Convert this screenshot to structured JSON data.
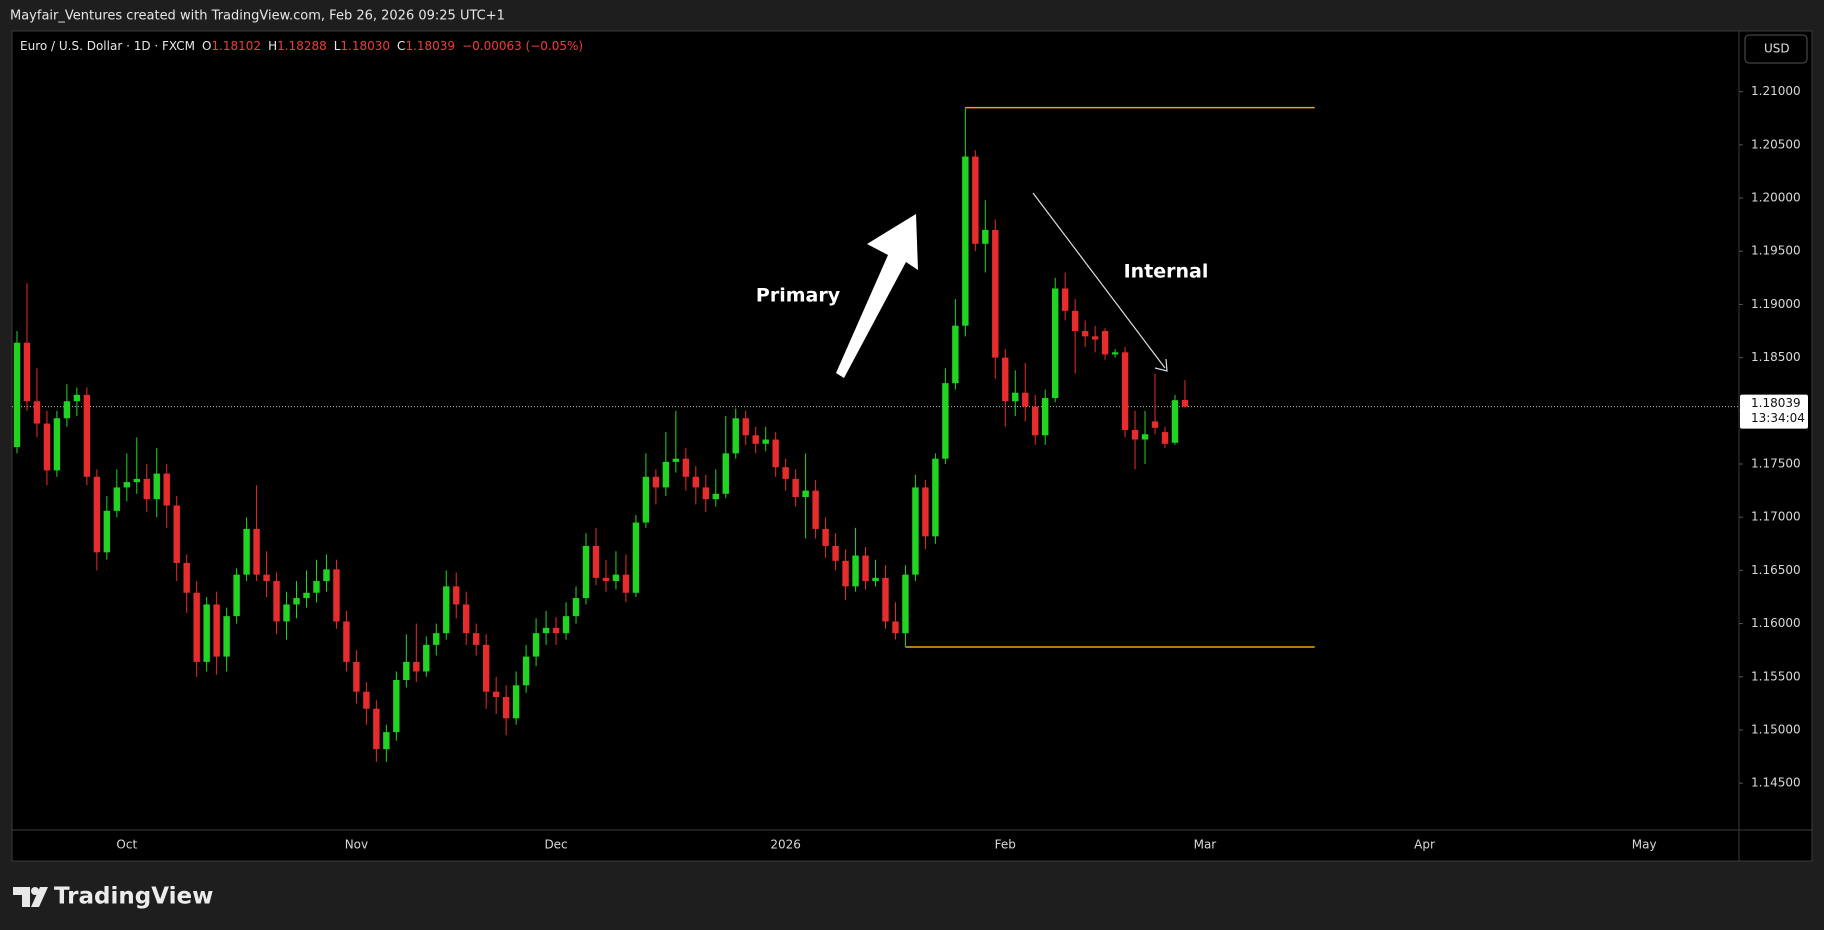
{
  "header": "Mayfair_Ventures created with TradingView.com, Feb 26, 2026 09:25 UTC+1",
  "footer": {
    "brand": "TradingView"
  },
  "chart_data": {
    "type": "candlestick",
    "legend": {
      "symbol": "Euro / U.S. Dollar · 1D · FXCM",
      "entries": [
        {
          "key": "O",
          "label": "1.18102"
        },
        {
          "key": "H",
          "label": "1.18288"
        },
        {
          "key": "L",
          "label": "1.18030"
        },
        {
          "key": "C",
          "label": "1.18039"
        }
      ],
      "change": "−0.00063 (−0.05%)"
    },
    "currency": "USD",
    "up_color": "#22d422",
    "down_color": "#e62c2c",
    "categories": [
      null,
      null,
      null,
      null,
      null,
      null,
      null,
      null,
      null,
      null,
      null,
      "Oct",
      null,
      null,
      null,
      null,
      null,
      null,
      null,
      null,
      null,
      null,
      null,
      null,
      null,
      null,
      null,
      null,
      null,
      null,
      null,
      null,
      null,
      null,
      "Nov",
      null,
      null,
      null,
      null,
      null,
      null,
      null,
      null,
      null,
      null,
      null,
      null,
      null,
      null,
      null,
      null,
      null,
      null,
      null,
      "Dec",
      null,
      null,
      null,
      null,
      null,
      null,
      null,
      null,
      null,
      null,
      null,
      null,
      null,
      null,
      null,
      null,
      null,
      null,
      null,
      null,
      null,
      null,
      "2026",
      null,
      null,
      null,
      null,
      null,
      null,
      null,
      null,
      null,
      null,
      null,
      null,
      null,
      null,
      null,
      null,
      null,
      null,
      null,
      null,
      null,
      "Feb",
      null,
      null,
      null,
      null,
      null,
      null,
      null,
      null,
      null,
      null,
      null,
      null,
      null,
      null,
      null,
      null,
      null,
      null,
      null,
      "Mar",
      null,
      null,
      null,
      null,
      null,
      null,
      null,
      null,
      null,
      null,
      null,
      null,
      null,
      null,
      null,
      null,
      null,
      null,
      null,
      null,
      null,
      "Apr",
      null,
      null,
      null,
      null,
      null,
      null,
      null,
      null,
      null,
      null,
      null,
      null,
      null,
      null,
      null,
      null,
      null,
      null,
      null,
      null,
      null,
      "May",
      null,
      null,
      null,
      null,
      null,
      null,
      null,
      null,
      null
    ],
    "open": [
      1.1766,
      1.1864,
      1.1809,
      1.1788,
      1.1744,
      1.1793,
      1.1809,
      1.1815,
      1.1738,
      1.1667,
      1.1706,
      1.1728,
      1.1733,
      1.1736,
      1.1717,
      1.1741,
      1.1711,
      1.1657,
      1.1629,
      1.1564,
      1.1618,
      1.1569,
      1.1607,
      1.1646,
      1.1689,
      1.1646,
      1.164,
      1.1602,
      1.1618,
      1.1624,
      1.1629,
      1.164,
      1.1651,
      1.1602,
      1.1564,
      1.1536,
      1.152,
      1.1482,
      1.1498,
      1.1547,
      1.1564,
      1.1555,
      1.158,
      1.1591,
      1.1635,
      1.1618,
      1.1591,
      1.158,
      1.1536,
      1.1531,
      1.1511,
      1.1542,
      1.1569,
      1.1591,
      1.1596,
      1.1591,
      1.1607,
      1.1624,
      1.1673,
      1.1643,
      1.164,
      1.1646,
      1.1629,
      1.1695,
      1.1738,
      1.1728,
      1.1752,
      1.1755,
      1.1738,
      1.1728,
      1.1717,
      1.1722,
      1.176,
      1.1793,
      1.1777,
      1.1769,
      1.1773,
      1.1747,
      1.1736,
      1.1719,
      1.1725,
      1.1689,
      1.1673,
      1.1659,
      1.1635,
      1.1664,
      1.164,
      1.1643,
      1.1602,
      1.1591,
      1.1646,
      1.1728,
      1.1682,
      1.1755,
      1.1826,
      1.188,
      1.2039,
      1.1957,
      1.197,
      1.185,
      1.1809,
      1.1817,
      1.1804,
      1.1777,
      1.1812,
      1.1915,
      1.1894,
      1.1875,
      1.187,
      1.1875,
      1.1853,
      1.1855,
      1.1782,
      1.1773,
      1.179,
      1.178,
      1.177,
      1.18102,
      null,
      null,
      null,
      null,
      null,
      null,
      null,
      null,
      null,
      null,
      null,
      null,
      null,
      null,
      null,
      null,
      null,
      null,
      null,
      null,
      null,
      null,
      null,
      null,
      null,
      null,
      null,
      null,
      null,
      null,
      null,
      null,
      null,
      null,
      null,
      null,
      null,
      null,
      null,
      null,
      null,
      null,
      null,
      null,
      null,
      null,
      null,
      null,
      null,
      null,
      null,
      null,
      null,
      null,
      null
    ],
    "high": [
      1.1875,
      1.192,
      1.184,
      1.18,
      1.18,
      1.1825,
      1.1822,
      1.1822,
      1.1745,
      1.172,
      1.1745,
      1.176,
      1.1775,
      1.175,
      1.1765,
      1.175,
      1.172,
      1.1665,
      1.164,
      1.1625,
      1.163,
      1.1615,
      1.1652,
      1.17,
      1.173,
      1.1668,
      1.1648,
      1.163,
      1.164,
      1.165,
      1.166,
      1.1665,
      1.166,
      1.1612,
      1.1575,
      1.1545,
      1.1528,
      1.1505,
      1.1555,
      1.159,
      1.16,
      1.1588,
      1.16,
      1.165,
      1.1648,
      1.163,
      1.16,
      1.159,
      1.155,
      1.1542,
      1.1555,
      1.158,
      1.1605,
      1.1612,
      1.1606,
      1.162,
      1.1635,
      1.1685,
      1.169,
      1.166,
      1.1668,
      1.1665,
      1.1702,
      1.176,
      1.1745,
      1.178,
      1.18,
      1.1765,
      1.1748,
      1.174,
      1.1745,
      1.1795,
      1.1802,
      1.18,
      1.1785,
      1.1785,
      1.178,
      1.1755,
      1.1745,
      1.176,
      1.1735,
      1.17,
      1.1685,
      1.167,
      1.169,
      1.1672,
      1.166,
      1.1655,
      1.162,
      1.1655,
      1.174,
      1.1735,
      1.176,
      1.184,
      1.1905,
      1.2085,
      1.2045,
      1.1998,
      1.198,
      1.1858,
      1.1838,
      1.1845,
      1.1815,
      1.182,
      1.1925,
      1.193,
      1.1905,
      1.1885,
      1.188,
      1.1878,
      1.1858,
      1.186,
      1.18,
      1.18,
      1.1835,
      1.1785,
      1.1815,
      1.18288,
      null,
      null,
      null,
      null,
      null,
      null,
      null,
      null,
      null,
      null,
      null,
      null,
      null,
      null,
      null,
      null,
      null,
      null,
      null,
      null,
      null,
      null,
      null,
      null,
      null,
      null,
      null,
      null,
      null,
      null,
      null,
      null,
      null,
      null,
      null,
      null,
      null,
      null,
      null,
      null,
      null,
      null,
      null,
      null,
      null,
      null,
      null,
      null,
      null,
      null,
      null,
      null,
      null,
      null,
      null
    ],
    "low": [
      1.176,
      1.18,
      1.1775,
      1.173,
      1.1738,
      1.1785,
      1.1795,
      1.173,
      1.165,
      1.166,
      1.17,
      1.1715,
      1.1722,
      1.1705,
      1.17,
      1.169,
      1.164,
      1.161,
      1.155,
      1.1555,
      1.1552,
      1.1555,
      1.16,
      1.164,
      1.164,
      1.1625,
      1.159,
      1.1585,
      1.1605,
      1.1615,
      1.162,
      1.163,
      1.1595,
      1.1555,
      1.1525,
      1.1505,
      1.147,
      1.147,
      1.149,
      1.154,
      1.1545,
      1.155,
      1.157,
      1.1585,
      1.1605,
      1.158,
      1.157,
      1.152,
      1.1515,
      1.1495,
      1.1505,
      1.1535,
      1.156,
      1.158,
      1.158,
      1.1585,
      1.16,
      1.1618,
      1.1636,
      1.163,
      1.1632,
      1.162,
      1.1625,
      1.169,
      1.1712,
      1.172,
      1.1742,
      1.1725,
      1.1712,
      1.1705,
      1.171,
      1.1718,
      1.1755,
      1.1768,
      1.176,
      1.1762,
      1.1738,
      1.1725,
      1.171,
      1.168,
      1.168,
      1.1662,
      1.165,
      1.1622,
      1.163,
      1.1632,
      1.1635,
      1.1595,
      1.1585,
      1.1578,
      1.164,
      1.167,
      1.1675,
      1.175,
      1.182,
      1.187,
      1.195,
      1.193,
      1.183,
      1.1785,
      1.1795,
      1.179,
      1.1768,
      1.1768,
      1.1808,
      1.1885,
      1.1835,
      1.186,
      1.1855,
      1.1848,
      1.185,
      1.1775,
      1.1745,
      1.175,
      1.1778,
      1.1765,
      1.1768,
      1.1803,
      null,
      null,
      null,
      null,
      null,
      null,
      null,
      null,
      null,
      null,
      null,
      null,
      null,
      null,
      null,
      null,
      null,
      null,
      null,
      null,
      null,
      null,
      null,
      null,
      null,
      null,
      null,
      null,
      null,
      null,
      null,
      null,
      null,
      null,
      null,
      null,
      null,
      null,
      null,
      null,
      null,
      null,
      null,
      null,
      null,
      null,
      null,
      null,
      null,
      null,
      null,
      null,
      null,
      null,
      null
    ],
    "close": [
      1.1864,
      1.1809,
      1.1788,
      1.1744,
      1.1793,
      1.1809,
      1.1815,
      1.1738,
      1.1667,
      1.1706,
      1.1728,
      1.1733,
      1.1736,
      1.1717,
      1.1741,
      1.1711,
      1.1657,
      1.1629,
      1.1564,
      1.1618,
      1.1569,
      1.1607,
      1.1646,
      1.1689,
      1.1646,
      1.164,
      1.1602,
      1.1618,
      1.1624,
      1.1629,
      1.164,
      1.1651,
      1.1602,
      1.1564,
      1.1536,
      1.152,
      1.1482,
      1.1498,
      1.1547,
      1.1564,
      1.1555,
      1.158,
      1.1591,
      1.1635,
      1.1618,
      1.1591,
      1.158,
      1.1536,
      1.1531,
      1.1511,
      1.1542,
      1.1569,
      1.1591,
      1.1596,
      1.1591,
      1.1607,
      1.1624,
      1.1673,
      1.1643,
      1.164,
      1.1646,
      1.1629,
      1.1695,
      1.1738,
      1.1728,
      1.1752,
      1.1755,
      1.1738,
      1.1728,
      1.1717,
      1.1722,
      1.176,
      1.1793,
      1.1777,
      1.1769,
      1.1773,
      1.1747,
      1.1736,
      1.1719,
      1.1725,
      1.1689,
      1.1673,
      1.1659,
      1.1635,
      1.1664,
      1.164,
      1.1643,
      1.1602,
      1.1591,
      1.1646,
      1.1728,
      1.1682,
      1.1755,
      1.1826,
      1.188,
      1.2039,
      1.1957,
      1.197,
      1.185,
      1.1809,
      1.1817,
      1.1804,
      1.1777,
      1.1812,
      1.1915,
      1.1894,
      1.1875,
      1.187,
      1.1867,
      1.1853,
      1.1855,
      1.1782,
      1.1773,
      1.1778,
      1.1784,
      1.1769,
      1.181,
      1.18039,
      null,
      null,
      null,
      null,
      null,
      null,
      null,
      null,
      null,
      null,
      null,
      null,
      null,
      null,
      null,
      null,
      null,
      null,
      null,
      null,
      null,
      null,
      null,
      null,
      null,
      null,
      null,
      null,
      null,
      null,
      null,
      null,
      null,
      null,
      null,
      null,
      null,
      null,
      null,
      null,
      null,
      null,
      null,
      null,
      null,
      null,
      null,
      null,
      null,
      null,
      null,
      null,
      null,
      null,
      null
    ],
    "ylim": [
      1.1406,
      1.2157
    ],
    "yticks": [
      {
        "value": 1.21,
        "label": "1.21000"
      },
      {
        "value": 1.205,
        "label": "1.20500"
      },
      {
        "value": 1.2,
        "label": "1.20000"
      },
      {
        "value": 1.195,
        "label": "1.19500"
      },
      {
        "value": 1.19,
        "label": "1.19000"
      },
      {
        "value": 1.185,
        "label": "1.18500"
      },
      {
        "value": 1.18,
        "label": "1.18000"
      },
      {
        "value": 1.175,
        "label": "1.17500"
      },
      {
        "value": 1.17,
        "label": "1.17000"
      },
      {
        "value": 1.165,
        "label": "1.16500"
      },
      {
        "value": 1.16,
        "label": "1.16000"
      },
      {
        "value": 1.155,
        "label": "1.15500"
      },
      {
        "value": 1.15,
        "label": "1.15000"
      },
      {
        "value": 1.145,
        "label": "1.14500"
      }
    ],
    "last_price": {
      "value": 1.18039,
      "label": "1.18039",
      "countdown": "13:34:04"
    },
    "level_color": "#f0a020",
    "levels": [
      {
        "value": 1.2085,
        "start": 95,
        "end": 130
      },
      {
        "value": 1.1578,
        "start": 89,
        "end": 130
      }
    ],
    "annotations": {
      "primary": "Primary",
      "internal": "Internal"
    }
  }
}
